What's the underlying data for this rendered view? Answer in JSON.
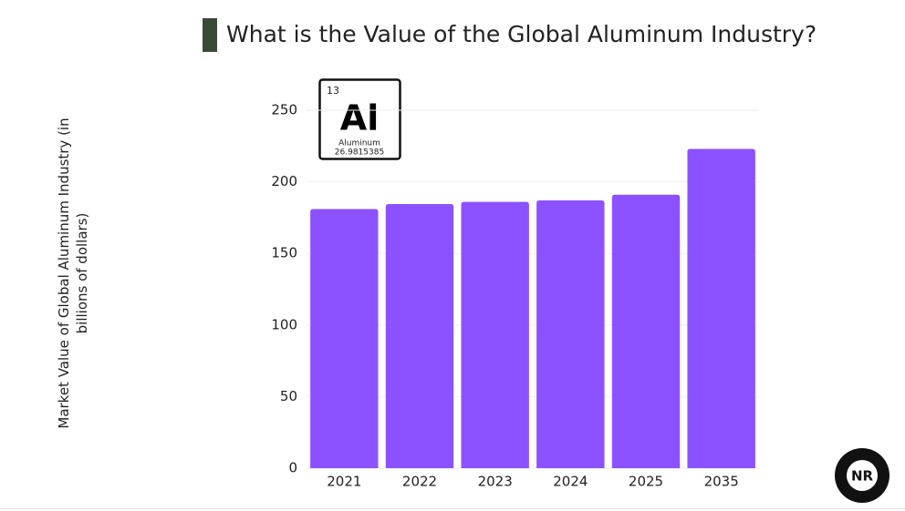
{
  "header": {
    "title": "What is the Value of the Global Aluminum Industry?"
  },
  "element": {
    "number": "13",
    "symbol": "Al",
    "name": "Aluminum",
    "mass": "26.9815385"
  },
  "logo": {
    "text": "NR"
  },
  "chart_data": {
    "type": "bar",
    "ylabel": "Market Value of Global Aluminum Industry (in billions of dollars)",
    "categories": [
      "2021",
      "2022",
      "2023",
      "2024",
      "2025",
      "2035"
    ],
    "values": [
      181,
      184.5,
      186,
      187,
      191,
      223
    ],
    "color": "#8c52ff",
    "ylim": [
      0,
      250
    ],
    "yticks": [
      0,
      50,
      100,
      150,
      200,
      250
    ],
    "grid": true
  }
}
